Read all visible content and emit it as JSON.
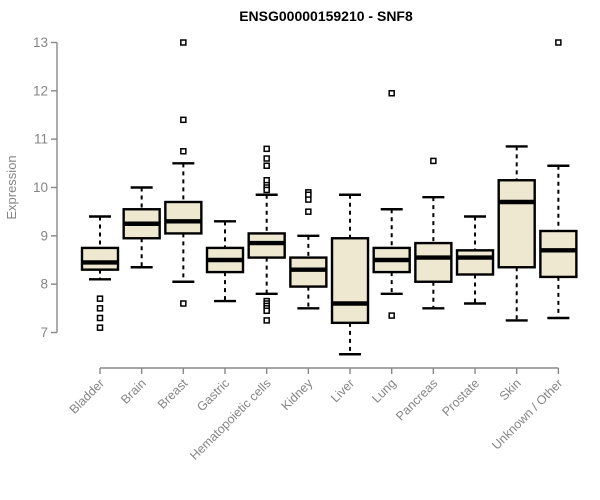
{
  "chart_data": {
    "type": "boxplot",
    "title": "ENSG00000159210 - SNF8",
    "ylabel": "Expression",
    "xlabel": "",
    "ylim": [
      7,
      13
    ],
    "yticks": [
      7,
      8,
      9,
      10,
      11,
      12,
      13
    ],
    "grid": false,
    "legend": "none",
    "box_fill_color": "#EDE8CF",
    "box_line_color": "#000000",
    "axis_color": "#888888",
    "axis_text_color": "#858585",
    "categories": [
      "Bladder",
      "Brain",
      "Breast",
      "Gastric",
      "Hematopoietic cells",
      "Kidney",
      "Liver",
      "Lung",
      "Pancreas",
      "Prostate",
      "Skin",
      "Unknown / Other"
    ],
    "series": [
      {
        "category": "Bladder",
        "whisker_low": 8.1,
        "q1": 8.3,
        "median": 8.45,
        "q3": 8.75,
        "whisker_high": 9.4,
        "outliers": [
          7.7,
          7.5,
          7.3,
          7.1
        ]
      },
      {
        "category": "Brain",
        "whisker_low": 8.35,
        "q1": 8.95,
        "median": 9.25,
        "q3": 9.55,
        "whisker_high": 10.0,
        "outliers": []
      },
      {
        "category": "Breast",
        "whisker_low": 8.05,
        "q1": 9.05,
        "median": 9.3,
        "q3": 9.7,
        "whisker_high": 10.5,
        "outliers": [
          13.0,
          11.4,
          10.75,
          7.6
        ]
      },
      {
        "category": "Gastric",
        "whisker_low": 7.65,
        "q1": 8.25,
        "median": 8.5,
        "q3": 8.75,
        "whisker_high": 9.3,
        "outliers": []
      },
      {
        "category": "Hematopoietic cells",
        "whisker_low": 7.8,
        "q1": 8.55,
        "median": 8.85,
        "q3": 9.05,
        "whisker_high": 9.85,
        "outliers": [
          10.8,
          10.6,
          10.45,
          10.15,
          10.05,
          10.0,
          9.95,
          7.65,
          7.6,
          7.55,
          7.5,
          7.45,
          7.25
        ]
      },
      {
        "category": "Kidney",
        "whisker_low": 7.5,
        "q1": 7.95,
        "median": 8.3,
        "q3": 8.55,
        "whisker_high": 9.0,
        "outliers": [
          9.9,
          9.85,
          9.75,
          9.5
        ]
      },
      {
        "category": "Liver",
        "whisker_low": 6.55,
        "q1": 7.2,
        "median": 7.6,
        "q3": 8.95,
        "whisker_high": 9.85,
        "outliers": []
      },
      {
        "category": "Lung",
        "whisker_low": 7.8,
        "q1": 8.25,
        "median": 8.5,
        "q3": 8.75,
        "whisker_high": 9.55,
        "outliers": [
          11.95,
          7.35
        ]
      },
      {
        "category": "Pancreas",
        "whisker_low": 7.5,
        "q1": 8.05,
        "median": 8.55,
        "q3": 8.85,
        "whisker_high": 9.8,
        "outliers": [
          10.55
        ]
      },
      {
        "category": "Prostate",
        "whisker_low": 7.6,
        "q1": 8.2,
        "median": 8.55,
        "q3": 8.7,
        "whisker_high": 9.4,
        "outliers": []
      },
      {
        "category": "Skin",
        "whisker_low": 7.25,
        "q1": 8.35,
        "median": 9.7,
        "q3": 10.15,
        "whisker_high": 10.85,
        "outliers": []
      },
      {
        "category": "Unknown / Other",
        "whisker_low": 7.3,
        "q1": 8.15,
        "median": 8.7,
        "q3": 9.1,
        "whisker_high": 10.45,
        "outliers": [
          13.0
        ]
      }
    ]
  }
}
